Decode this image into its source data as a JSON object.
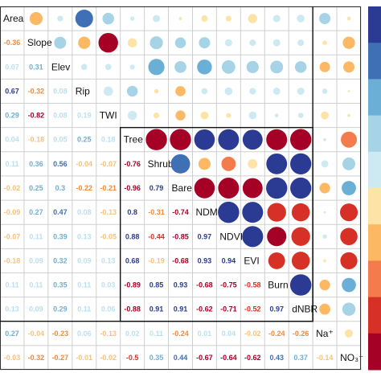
{
  "chart_data": {
    "type": "heatmap",
    "variables": [
      "Area",
      "Slope",
      "Elev",
      "Rip",
      "TWI",
      "Tree",
      "Shrub",
      "Bare",
      "NDMI",
      "NDVI",
      "EVI",
      "Burn",
      "dNBR",
      "Na⁺",
      "NO₃⁻"
    ],
    "lower_values": [
      [],
      [
        -0.36
      ],
      [
        0.07,
        0.31
      ],
      [
        0.67,
        -0.32,
        0.08
      ],
      [
        0.29,
        -0.82,
        0.08,
        0.19
      ],
      [
        0.04,
        -0.18,
        0.05,
        0.25,
        0.18
      ],
      [
        0.11,
        0.36,
        0.56,
        -0.04,
        -0.07,
        -0.76
      ],
      [
        -0.02,
        0.25,
        0.3,
        -0.22,
        -0.21,
        -0.96,
        0.79
      ],
      [
        -0.09,
        0.27,
        0.47,
        0.08,
        -0.13,
        0.8,
        -0.31,
        -0.74
      ],
      [
        -0.07,
        0.11,
        0.39,
        0.13,
        -0.05,
        0.88,
        -0.44,
        -0.85,
        0.97
      ],
      [
        -0.18,
        0.09,
        0.32,
        0.09,
        0.13,
        0.68,
        -0.19,
        -0.68,
        0.93,
        0.94
      ],
      [
        0.11,
        0.11,
        0.35,
        0.11,
        0.03,
        -0.89,
        0.85,
        0.93,
        -0.68,
        -0.75,
        -0.58
      ],
      [
        0.13,
        0.09,
        0.29,
        0.11,
        0.06,
        -0.88,
        0.91,
        0.91,
        -0.62,
        -0.71,
        -0.52,
        0.97
      ],
      [
        0.27,
        -0.04,
        -0.23,
        0.06,
        -0.13,
        0.02,
        0.11,
        -0.24,
        0.01,
        0.04,
        -0.02,
        -0.24,
        -0.26
      ],
      [
        -0.03,
        -0.32,
        -0.27,
        -0.01,
        -0.02,
        -0.5,
        0.35,
        0.44,
        -0.67,
        -0.64,
        -0.62,
        0.43,
        0.37,
        -0.14
      ]
    ],
    "upper_values": [
      [],
      [
        -0.36
      ],
      [
        0.07,
        0.31
      ],
      [
        0.67,
        -0.32,
        0.08
      ],
      [
        0.29,
        -0.82,
        0.08,
        0.19
      ],
      [
        0.04,
        -0.18,
        0.05,
        0.25,
        0.18
      ],
      [
        0.11,
        0.36,
        0.56,
        -0.04,
        -0.07,
        -0.96
      ],
      [
        -0.02,
        0.25,
        0.3,
        -0.22,
        -0.21,
        -0.96,
        0.79
      ],
      [
        -0.09,
        0.27,
        0.47,
        0.08,
        -0.13,
        0.9,
        -0.31,
        -0.9
      ],
      [
        -0.07,
        0.11,
        0.39,
        0.13,
        -0.05,
        0.93,
        -0.44,
        -0.93,
        0.97
      ],
      [
        -0.18,
        0.09,
        0.32,
        0.09,
        0.13,
        0.85,
        -0.19,
        -0.85,
        0.93,
        0.94
      ],
      [
        0.11,
        0.11,
        0.35,
        0.11,
        0.03,
        -0.93,
        0.92,
        0.96,
        -0.75,
        -0.8,
        -0.6
      ],
      [
        0.13,
        0.09,
        0.29,
        0.11,
        0.06,
        -0.96,
        0.95,
        0.95,
        -0.7,
        -0.75,
        -0.7,
        0.97
      ],
      [
        0.27,
        -0.04,
        -0.23,
        0.06,
        -0.13,
        0.02,
        0.11,
        -0.24,
        0.01,
        0.04,
        -0.02,
        -0.24,
        -0.26
      ],
      [
        -0.03,
        -0.32,
        -0.27,
        -0.01,
        -0.02,
        -0.55,
        0.35,
        0.44,
        -0.67,
        -0.64,
        -0.62,
        0.43,
        0.37,
        -0.14
      ]
    ],
    "color_scale": {
      "negative": [
        "#fde3a6",
        "#fcb862",
        "#f47b4c",
        "#d73027",
        "#a50026"
      ],
      "positive": [
        "#cde9f2",
        "#a6d4e6",
        "#6cafd6",
        "#3f6fb5",
        "#2b3a93"
      ]
    },
    "legend_placement": "right"
  }
}
